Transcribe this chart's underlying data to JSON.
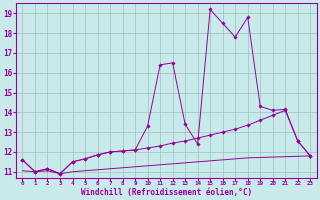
{
  "xlabel": "Windchill (Refroidissement éolien,°C)",
  "bg_color": "#c8eaea",
  "line_color": "#990099",
  "grid_color": "#9dbfbf",
  "xlim": [
    -0.5,
    23.5
  ],
  "ylim": [
    10.7,
    19.5
  ],
  "xticks": [
    0,
    1,
    2,
    3,
    4,
    5,
    6,
    7,
    8,
    9,
    10,
    11,
    12,
    13,
    14,
    15,
    16,
    17,
    18,
    19,
    20,
    21,
    22,
    23
  ],
  "yticks": [
    11,
    12,
    13,
    14,
    15,
    16,
    17,
    18,
    19
  ],
  "line1_x": [
    0,
    1,
    2,
    3,
    4,
    5,
    6,
    7,
    8,
    9,
    10,
    11,
    12,
    13,
    14,
    15,
    16,
    17,
    18,
    19,
    20,
    21,
    22,
    23
  ],
  "line1_y": [
    11.6,
    11.0,
    11.15,
    10.9,
    11.5,
    11.65,
    11.85,
    12.0,
    12.05,
    12.1,
    13.3,
    16.4,
    16.5,
    13.4,
    12.4,
    19.2,
    18.5,
    17.8,
    18.8,
    14.3,
    14.1,
    14.15,
    12.55,
    11.8
  ],
  "line2_x": [
    0,
    1,
    2,
    3,
    4,
    5,
    6,
    7,
    8,
    9,
    10,
    11,
    12,
    13,
    14,
    15,
    16,
    17,
    18,
    19,
    20,
    21,
    22,
    23
  ],
  "line2_y": [
    11.6,
    11.0,
    11.15,
    10.9,
    11.5,
    11.65,
    11.85,
    12.0,
    12.05,
    12.1,
    12.2,
    12.3,
    12.45,
    12.55,
    12.7,
    12.85,
    13.0,
    13.15,
    13.35,
    13.6,
    13.85,
    14.1,
    12.55,
    11.8
  ],
  "line3_x": [
    0,
    1,
    2,
    3,
    4,
    5,
    6,
    7,
    8,
    9,
    10,
    11,
    12,
    13,
    14,
    15,
    16,
    17,
    18,
    19,
    20,
    21,
    22,
    23
  ],
  "line3_y": [
    11.05,
    11.0,
    11.05,
    10.9,
    11.0,
    11.05,
    11.1,
    11.15,
    11.2,
    11.25,
    11.3,
    11.35,
    11.4,
    11.45,
    11.5,
    11.55,
    11.6,
    11.65,
    11.7,
    11.72,
    11.74,
    11.76,
    11.78,
    11.8
  ]
}
